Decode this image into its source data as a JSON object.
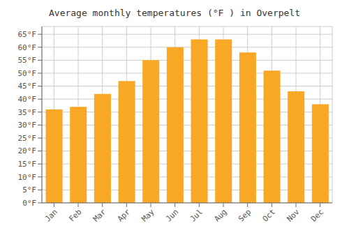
{
  "chart_data": {
    "type": "bar",
    "title": "Average monthly temperatures (°F ) in Overpelt",
    "categories": [
      "Jan",
      "Feb",
      "Mar",
      "Apr",
      "May",
      "Jun",
      "Jul",
      "Aug",
      "Sep",
      "Oct",
      "Nov",
      "Dec"
    ],
    "values": [
      36,
      37,
      42,
      47,
      55,
      60,
      63,
      63,
      58,
      51,
      43,
      38
    ],
    "color": "#F9A825",
    "ylim": [
      0,
      68
    ],
    "yticks": [
      {
        "value": 0,
        "label": "0°F"
      },
      {
        "value": 5,
        "label": "5°F"
      },
      {
        "value": 10,
        "label": "10°F"
      },
      {
        "value": 15,
        "label": "15°F"
      },
      {
        "value": 20,
        "label": "20°F"
      },
      {
        "value": 25,
        "label": "25°F"
      },
      {
        "value": 30,
        "label": "30°F"
      },
      {
        "value": 35,
        "label": "35°F"
      },
      {
        "value": 40,
        "label": "40°F"
      },
      {
        "value": 45,
        "label": "45°F"
      },
      {
        "value": 50,
        "label": "50°F"
      },
      {
        "value": 55,
        "label": "55°F"
      },
      {
        "value": 60,
        "label": "60°F"
      },
      {
        "value": 65,
        "label": "65°F"
      }
    ],
    "grid": true
  }
}
